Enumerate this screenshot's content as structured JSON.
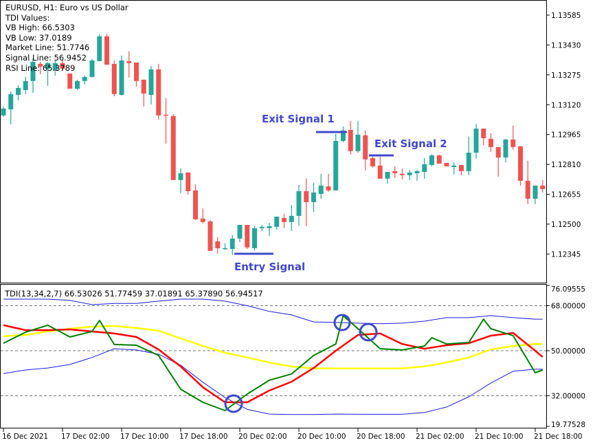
{
  "header": {
    "symbol_line": "EURUSD, H1:  Euro vs US Dollar",
    "tdi_values_title": "TDI Values:",
    "vb_high": "VB High: 66.5303",
    "vb_low": "VB Low: 37.0189",
    "market_line": "Market Line: 51.7746",
    "signal_line": "Signal Line: 56.9452",
    "rsi_line": "RSI Line: 65.3789"
  },
  "annotations": {
    "exit_signal_1": "Exit Signal 1",
    "exit_signal_2": "Exit Signal 2",
    "entry_signal": "Entry Signal"
  },
  "colors": {
    "bull": "#26a69a",
    "bear": "#ef5350",
    "annotation": "#3f48cc",
    "volatility_band": "#1a1adf",
    "market_base_line": "#ffff00",
    "signal_line": "#ff0000",
    "rsi_price_line": "#008000"
  },
  "chart_data": [
    {
      "type": "candlestick",
      "title": "EURUSD, H1:  Euro vs US Dollar",
      "ylim": [
        1.1224,
        1.1365
      ],
      "y_ticks": [
        "1.13585",
        "1.13430",
        "1.13275",
        "1.13120",
        "1.12965",
        "1.12810",
        "1.12655",
        "1.12500",
        "1.12345"
      ],
      "x_ticks": [
        "16 Dec 2021",
        "17 Dec 02:00",
        "17 Dec 10:00",
        "17 Dec 18:00",
        "20 Dec 02:00",
        "20 Dec 10:00",
        "20 Dec 18:00",
        "21 Dec 02:00",
        "21 Dec 10:00",
        "21 Dec 18:00"
      ],
      "columns": [
        "time",
        "open",
        "high",
        "low",
        "close"
      ],
      "candles": [
        [
          "16 Dec 18:00",
          1.13064,
          1.13111,
          1.13057,
          1.131
        ],
        [
          "16 Dec 19:00",
          1.13096,
          1.13189,
          1.13018,
          1.13175
        ],
        [
          "16 Dec 20:00",
          1.13171,
          1.13221,
          1.13143,
          1.13207
        ],
        [
          "16 Dec 21:00",
          1.13196,
          1.13264,
          1.13175,
          1.13243
        ],
        [
          "16 Dec 22:00",
          1.13243,
          1.13361,
          1.13182,
          1.13343
        ],
        [
          "16 Dec 23:00",
          1.13332,
          1.13343,
          1.13278,
          1.13318
        ],
        [
          "17 Dec 00:00",
          1.13307,
          1.13343,
          1.13218,
          1.13336
        ],
        [
          "17 Dec 01:00",
          1.133,
          1.1335,
          1.13271,
          1.13336
        ],
        [
          "17 Dec 02:00",
          1.13336,
          1.1335,
          1.13296,
          1.13307
        ],
        [
          "17 Dec 03:00",
          1.13282,
          1.13282,
          1.13203,
          1.13203
        ],
        [
          "17 Dec 04:00",
          1.13203,
          1.1325,
          1.13196,
          1.13243
        ],
        [
          "17 Dec 05:00",
          1.13243,
          1.13271,
          1.13225,
          1.13264
        ],
        [
          "17 Dec 06:00",
          1.13264,
          1.13357,
          1.13261,
          1.1335
        ],
        [
          "17 Dec 07:00",
          1.13346,
          1.13486,
          1.13346,
          1.13475
        ],
        [
          "17 Dec 08:00",
          1.13475,
          1.13486,
          1.13328,
          1.13328
        ],
        [
          "17 Dec 09:00",
          1.13332,
          1.1335,
          1.13164,
          1.13175
        ],
        [
          "17 Dec 10:00",
          1.13171,
          1.13375,
          1.13168,
          1.1335
        ],
        [
          "17 Dec 11:00",
          1.13346,
          1.13397,
          1.13261,
          1.13336
        ],
        [
          "17 Dec 12:00",
          1.13339,
          1.13339,
          1.13214,
          1.13243
        ],
        [
          "17 Dec 13:00",
          1.1325,
          1.1325,
          1.13111,
          1.13178
        ],
        [
          "17 Dec 14:00",
          1.13171,
          1.13321,
          1.13121,
          1.13303
        ],
        [
          "17 Dec 15:00",
          1.13303,
          1.13332,
          1.13043,
          1.13064
        ],
        [
          "17 Dec 16:00",
          1.13068,
          1.13154,
          1.12918,
          1.13064
        ],
        [
          "17 Dec 17:00",
          1.13061,
          1.13071,
          1.12729,
          1.12729
        ],
        [
          "17 Dec 18:00",
          1.12729,
          1.12789,
          1.12661,
          1.12764
        ],
        [
          "17 Dec 19:00",
          1.12768,
          1.12768,
          1.12654,
          1.12671
        ],
        [
          "17 Dec 20:00",
          1.12675,
          1.12707,
          1.12521,
          1.12525
        ],
        [
          "17 Dec 21:00",
          1.12529,
          1.12582,
          1.12504,
          1.12511
        ],
        [
          "17 Dec 22:00",
          1.12514,
          1.12521,
          1.12361,
          1.12361
        ],
        [
          "17 Dec 23:00",
          1.12411,
          1.12432,
          1.12346,
          1.12375
        ],
        [
          "20 Dec 00:00",
          1.12371,
          1.124,
          1.12368,
          1.12375
        ],
        [
          "20 Dec 01:00",
          1.12371,
          1.12443,
          1.12339,
          1.12425
        ],
        [
          "20 Dec 02:00",
          1.12425,
          1.12496,
          1.12407,
          1.12496
        ],
        [
          "20 Dec 03:00",
          1.12496,
          1.12496,
          1.12371,
          1.12379
        ],
        [
          "20 Dec 04:00",
          1.12375,
          1.12489,
          1.12361,
          1.12479
        ],
        [
          "20 Dec 05:00",
          1.12479,
          1.12496,
          1.12464,
          1.12486
        ],
        [
          "20 Dec 06:00",
          1.12479,
          1.12507,
          1.12439,
          1.12489
        ],
        [
          "20 Dec 07:00",
          1.12486,
          1.12539,
          1.12471,
          1.12539
        ],
        [
          "20 Dec 08:00",
          1.12532,
          1.12554,
          1.12479,
          1.12511
        ],
        [
          "20 Dec 09:00",
          1.12511,
          1.126,
          1.12464,
          1.12543
        ],
        [
          "20 Dec 10:00",
          1.12543,
          1.12704,
          1.12493,
          1.12671
        ],
        [
          "20 Dec 11:00",
          1.12671,
          1.12736,
          1.12489,
          1.12614
        ],
        [
          "20 Dec 12:00",
          1.12614,
          1.12714,
          1.12564,
          1.12664
        ],
        [
          "20 Dec 13:00",
          1.12657,
          1.12761,
          1.12632,
          1.127
        ],
        [
          "20 Dec 14:00",
          1.12696,
          1.12761,
          1.12668,
          1.12675
        ],
        [
          "20 Dec 15:00",
          1.12675,
          1.12968,
          1.12675,
          1.12932
        ],
        [
          "20 Dec 16:00",
          1.12932,
          1.13007,
          1.12925,
          1.12986
        ],
        [
          "20 Dec 17:00",
          1.12989,
          1.13036,
          1.12861,
          1.12879
        ],
        [
          "20 Dec 18:00",
          1.12879,
          1.13036,
          1.12871,
          1.12964
        ],
        [
          "20 Dec 19:00",
          1.12961,
          1.12986,
          1.12779,
          1.12836
        ],
        [
          "20 Dec 20:00",
          1.12843,
          1.1285,
          1.12793,
          1.128
        ],
        [
          "20 Dec 21:00",
          1.12804,
          1.1285,
          1.12736,
          1.12736
        ],
        [
          "20 Dec 22:00",
          1.12736,
          1.12771,
          1.12711,
          1.12771
        ],
        [
          "20 Dec 23:00",
          1.12775,
          1.128,
          1.12739,
          1.12764
        ],
        [
          "21 Dec 00:00",
          1.12761,
          1.12789,
          1.12732,
          1.12754
        ],
        [
          "21 Dec 01:00",
          1.12754,
          1.12782,
          1.12729,
          1.12768
        ],
        [
          "21 Dec 02:00",
          1.12764,
          1.12782,
          1.12725,
          1.12775
        ],
        [
          "21 Dec 03:00",
          1.12771,
          1.12843,
          1.12736,
          1.12811
        ],
        [
          "21 Dec 04:00",
          1.12807,
          1.12864,
          1.128,
          1.12857
        ],
        [
          "21 Dec 05:00",
          1.12857,
          1.12861,
          1.12814,
          1.12814
        ],
        [
          "21 Dec 06:00",
          1.12818,
          1.12818,
          1.128,
          1.128
        ],
        [
          "21 Dec 07:00",
          1.12796,
          1.12821,
          1.12757,
          1.12804
        ],
        [
          "21 Dec 08:00",
          1.12807,
          1.12807,
          1.12754,
          1.12775
        ],
        [
          "21 Dec 09:00",
          1.12775,
          1.12954,
          1.12754,
          1.12871
        ],
        [
          "21 Dec 10:00",
          1.12871,
          1.13021,
          1.12839,
          1.12996
        ],
        [
          "21 Dec 11:00",
          1.12996,
          1.12996,
          1.12911,
          1.12946
        ],
        [
          "21 Dec 12:00",
          1.12943,
          1.12972,
          1.12875,
          1.129
        ],
        [
          "21 Dec 13:00",
          1.129,
          1.129,
          1.12746,
          1.12846
        ],
        [
          "21 Dec 14:00",
          1.12846,
          1.12943,
          1.12821,
          1.12939
        ],
        [
          "21 Dec 15:00",
          1.12939,
          1.13011,
          1.12886,
          1.129
        ],
        [
          "21 Dec 16:00",
          1.12904,
          1.12904,
          1.127,
          1.12725
        ],
        [
          "21 Dec 17:00",
          1.12725,
          1.12829,
          1.12604,
          1.12632
        ],
        [
          "21 Dec 18:00",
          1.12632,
          1.127,
          1.12604,
          1.127
        ],
        [
          "21 Dec 19:00",
          1.127,
          1.12729,
          1.12664,
          1.12682
        ]
      ]
    },
    {
      "type": "line",
      "title": "TDI(13,34,2,7) 66.53026 51.77459 37.01891 65.37890 56.94517",
      "ylim": [
        19.77528,
        76.09555
      ],
      "y_ticks": [
        "76.09555",
        "68.00000",
        "50.00000",
        "32.00000",
        "19.77528"
      ],
      "levels": [
        68,
        50,
        32
      ],
      "grid": "dashed level lines",
      "x": [
        "16 Dec 18:00",
        "16 Dec 21:00",
        "17 Dec 00:00",
        "17 Dec 03:00",
        "17 Dec 06:00",
        "17 Dec 09:00",
        "17 Dec 12:00",
        "17 Dec 15:00",
        "17 Dec 18:00",
        "17 Dec 21:00",
        "20 Dec 00:00",
        "20 Dec 03:00",
        "20 Dec 06:00",
        "20 Dec 09:00",
        "20 Dec 12:00",
        "20 Dec 15:00",
        "20 Dec 18:00",
        "20 Dec 21:00",
        "21 Dec 00:00",
        "21 Dec 03:00",
        "21 Dec 06:00",
        "21 Dec 09:00",
        "21 Dec 12:00",
        "21 Dec 15:00",
        "21 Dec 18:00",
        "21 Dec 19:00"
      ],
      "series": [
        {
          "key": "vb_high",
          "color": "#1a1adf",
          "width": 1,
          "values": [
            70.6,
            70.6,
            70.6,
            70.1,
            68.4,
            68.9,
            68.9,
            69.8,
            70.6,
            70.6,
            69.8,
            68.0,
            65.7,
            64.3,
            61.5,
            61.3,
            61.0,
            60.8,
            61.0,
            61.8,
            63.2,
            63.2,
            64.0,
            63.2,
            62.6,
            62.6
          ]
        },
        {
          "key": "vb_low",
          "color": "#1a1adf",
          "width": 1,
          "values": [
            40.9,
            42.3,
            43.1,
            44.5,
            47.3,
            50.8,
            50.3,
            48.6,
            44.2,
            37.4,
            31.3,
            26.6,
            24.7,
            24.5,
            24.5,
            24.7,
            24.6,
            24.6,
            24.6,
            25.3,
            27.5,
            31.6,
            37.1,
            41.8,
            42.6,
            42.6
          ]
        },
        {
          "key": "market_base_line",
          "color": "#ffff00",
          "width": 2.5,
          "values": [
            55.8,
            56.3,
            57.7,
            58.8,
            59.6,
            59.9,
            59.1,
            58.0,
            54.9,
            51.9,
            49.2,
            47.3,
            45.3,
            43.7,
            42.9,
            42.9,
            42.9,
            42.9,
            42.9,
            43.7,
            45.3,
            47.3,
            50.5,
            51.9,
            52.7,
            52.7
          ]
        },
        {
          "key": "signal_line",
          "color": "#ff0000",
          "width": 2.5,
          "values": [
            60.2,
            58.2,
            58.2,
            58.5,
            57.7,
            56.9,
            55.5,
            50.5,
            43.7,
            35.4,
            29.4,
            29.4,
            34.1,
            37.6,
            43.1,
            50.0,
            56.3,
            56.9,
            52.7,
            50.8,
            52.2,
            53.0,
            56.0,
            57.1,
            50.0,
            47.5
          ]
        },
        {
          "key": "rsi_price_line",
          "color": "#008000",
          "width": 2,
          "values": [
            53.0,
            57.4,
            60.2,
            55.5,
            57.7,
            52.5,
            52.2,
            48.1,
            34.6,
            29.4,
            26.1,
            32.7,
            38.2,
            40.7,
            48.1,
            52.7,
            58.8,
            50.8,
            50.3,
            51.9,
            52.7,
            53.3,
            58.8,
            56.0,
            41.2,
            42.3
          ]
        }
      ],
      "rsi_peaks": [
        [
          "17 Dec 07:00",
          62.1
        ],
        [
          "20 Dec 16:00",
          64.0
        ],
        [
          "21 Dec 04:00",
          55.2
        ],
        [
          "21 Dec 11:00",
          62.6
        ]
      ]
    }
  ]
}
